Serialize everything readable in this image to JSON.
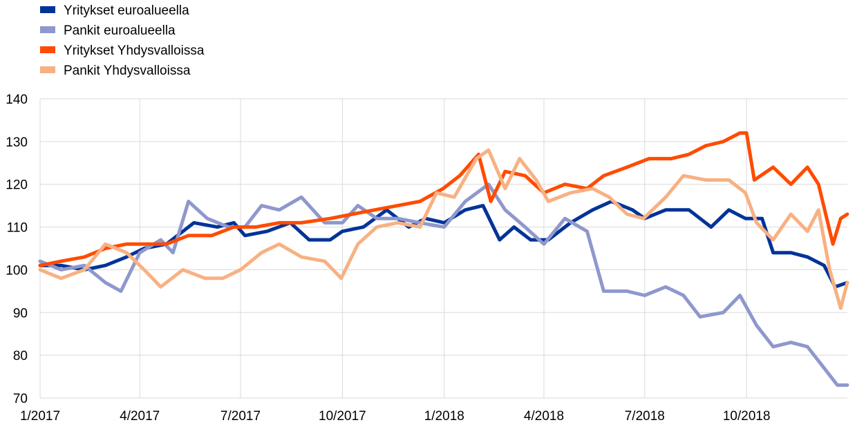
{
  "chart_data": {
    "type": "line",
    "title": "",
    "xlabel": "",
    "ylabel": "",
    "ylim": [
      70,
      140
    ],
    "yticks": [
      70,
      80,
      90,
      100,
      110,
      120,
      130,
      140
    ],
    "x_start": "2017-01-01",
    "x_end": "2018-12-31",
    "xticks": [
      {
        "date": "2017-01-01",
        "label": "1/2017"
      },
      {
        "date": "2017-04-01",
        "label": "4/2017"
      },
      {
        "date": "2017-07-01",
        "label": "7/2017"
      },
      {
        "date": "2017-10-01",
        "label": "10/2017"
      },
      {
        "date": "2018-01-01",
        "label": "1/2018"
      },
      {
        "date": "2018-04-01",
        "label": "4/2018"
      },
      {
        "date": "2018-07-01",
        "label": "7/2018"
      },
      {
        "date": "2018-10-01",
        "label": "10/2018"
      }
    ],
    "grid": true,
    "legend_position": "top-left",
    "series": [
      {
        "name": "Yritykset euroalueella",
        "color": "#003399",
        "points": [
          [
            "2017-01-01",
            101
          ],
          [
            "2017-01-20",
            101
          ],
          [
            "2017-02-10",
            100
          ],
          [
            "2017-03-01",
            101
          ],
          [
            "2017-03-20",
            103
          ],
          [
            "2017-04-05",
            105
          ],
          [
            "2017-04-25",
            106
          ],
          [
            "2017-05-10",
            109
          ],
          [
            "2017-05-20",
            111
          ],
          [
            "2017-06-10",
            110
          ],
          [
            "2017-06-25",
            111
          ],
          [
            "2017-07-05",
            108
          ],
          [
            "2017-07-25",
            109
          ],
          [
            "2017-08-15",
            111
          ],
          [
            "2017-09-01",
            107
          ],
          [
            "2017-09-20",
            107
          ],
          [
            "2017-10-01",
            109
          ],
          [
            "2017-10-20",
            110
          ],
          [
            "2017-11-10",
            114
          ],
          [
            "2017-11-30",
            110
          ],
          [
            "2017-12-15",
            112
          ],
          [
            "2018-01-01",
            111
          ],
          [
            "2018-01-20",
            114
          ],
          [
            "2018-02-05",
            115
          ],
          [
            "2018-02-20",
            107
          ],
          [
            "2018-03-05",
            110
          ],
          [
            "2018-03-20",
            107
          ],
          [
            "2018-04-05",
            107
          ],
          [
            "2018-04-25",
            111
          ],
          [
            "2018-05-15",
            114
          ],
          [
            "2018-06-01",
            116
          ],
          [
            "2018-06-20",
            114
          ],
          [
            "2018-07-01",
            112
          ],
          [
            "2018-07-20",
            114
          ],
          [
            "2018-08-10",
            114
          ],
          [
            "2018-08-30",
            110
          ],
          [
            "2018-09-15",
            114
          ],
          [
            "2018-09-30",
            112
          ],
          [
            "2018-10-15",
            112
          ],
          [
            "2018-10-25",
            104
          ],
          [
            "2018-11-10",
            104
          ],
          [
            "2018-11-25",
            103
          ],
          [
            "2018-12-10",
            101
          ],
          [
            "2018-12-20",
            96
          ],
          [
            "2018-12-31",
            97
          ]
        ]
      },
      {
        "name": "Pankit euroalueella",
        "color": "#8f98cc",
        "points": [
          [
            "2017-01-01",
            102
          ],
          [
            "2017-01-20",
            100
          ],
          [
            "2017-02-10",
            101
          ],
          [
            "2017-03-01",
            97
          ],
          [
            "2017-03-15",
            95
          ],
          [
            "2017-04-01",
            104
          ],
          [
            "2017-04-20",
            107
          ],
          [
            "2017-05-01",
            104
          ],
          [
            "2017-05-15",
            116
          ],
          [
            "2017-06-01",
            112
          ],
          [
            "2017-06-20",
            110
          ],
          [
            "2017-07-05",
            110
          ],
          [
            "2017-07-20",
            115
          ],
          [
            "2017-08-05",
            114
          ],
          [
            "2017-08-25",
            117
          ],
          [
            "2017-09-15",
            111
          ],
          [
            "2017-10-01",
            111
          ],
          [
            "2017-10-15",
            115
          ],
          [
            "2017-11-01",
            112
          ],
          [
            "2017-11-20",
            112
          ],
          [
            "2017-12-10",
            111
          ],
          [
            "2018-01-01",
            110
          ],
          [
            "2018-01-20",
            116
          ],
          [
            "2018-02-10",
            120
          ],
          [
            "2018-02-25",
            114
          ],
          [
            "2018-03-15",
            110
          ],
          [
            "2018-04-01",
            106
          ],
          [
            "2018-04-20",
            112
          ],
          [
            "2018-05-10",
            109
          ],
          [
            "2018-05-25",
            95
          ],
          [
            "2018-06-15",
            95
          ],
          [
            "2018-07-01",
            94
          ],
          [
            "2018-07-20",
            96
          ],
          [
            "2018-08-05",
            94
          ],
          [
            "2018-08-20",
            89
          ],
          [
            "2018-09-10",
            90
          ],
          [
            "2018-09-25",
            94
          ],
          [
            "2018-10-10",
            87
          ],
          [
            "2018-10-25",
            82
          ],
          [
            "2018-11-10",
            83
          ],
          [
            "2018-11-25",
            82
          ],
          [
            "2018-12-10",
            77
          ],
          [
            "2018-12-22",
            73
          ],
          [
            "2018-12-31",
            73
          ]
        ]
      },
      {
        "name": "Yritykset Yhdysvalloissa",
        "color": "#ff4b00",
        "points": [
          [
            "2017-01-01",
            101
          ],
          [
            "2017-01-20",
            102
          ],
          [
            "2017-02-10",
            103
          ],
          [
            "2017-03-01",
            105
          ],
          [
            "2017-03-20",
            106
          ],
          [
            "2017-04-05",
            106
          ],
          [
            "2017-04-25",
            106
          ],
          [
            "2017-05-15",
            108
          ],
          [
            "2017-06-05",
            108
          ],
          [
            "2017-06-25",
            110
          ],
          [
            "2017-07-15",
            110
          ],
          [
            "2017-08-05",
            111
          ],
          [
            "2017-08-25",
            111
          ],
          [
            "2017-09-20",
            112
          ],
          [
            "2017-10-10",
            113
          ],
          [
            "2017-10-30",
            114
          ],
          [
            "2017-11-20",
            115
          ],
          [
            "2017-12-10",
            116
          ],
          [
            "2017-12-31",
            119
          ],
          [
            "2018-01-15",
            122
          ],
          [
            "2018-02-01",
            127
          ],
          [
            "2018-02-12",
            116
          ],
          [
            "2018-02-25",
            123
          ],
          [
            "2018-03-15",
            122
          ],
          [
            "2018-04-01",
            118
          ],
          [
            "2018-04-20",
            120
          ],
          [
            "2018-05-10",
            119
          ],
          [
            "2018-05-25",
            122
          ],
          [
            "2018-06-15",
            124
          ],
          [
            "2018-07-05",
            126
          ],
          [
            "2018-07-25",
            126
          ],
          [
            "2018-08-10",
            127
          ],
          [
            "2018-08-25",
            129
          ],
          [
            "2018-09-10",
            130
          ],
          [
            "2018-09-25",
            132
          ],
          [
            "2018-10-01",
            132
          ],
          [
            "2018-10-08",
            121
          ],
          [
            "2018-10-25",
            124
          ],
          [
            "2018-11-10",
            120
          ],
          [
            "2018-11-25",
            124
          ],
          [
            "2018-12-05",
            120
          ],
          [
            "2018-12-18",
            106
          ],
          [
            "2018-12-25",
            112
          ],
          [
            "2018-12-31",
            113
          ]
        ]
      },
      {
        "name": "Pankit Yhdysvalloissa",
        "color": "#f7b183",
        "points": [
          [
            "2017-01-01",
            100
          ],
          [
            "2017-01-20",
            98
          ],
          [
            "2017-02-10",
            100
          ],
          [
            "2017-03-01",
            106
          ],
          [
            "2017-03-20",
            104
          ],
          [
            "2017-04-05",
            100
          ],
          [
            "2017-04-20",
            96
          ],
          [
            "2017-05-10",
            100
          ],
          [
            "2017-05-30",
            98
          ],
          [
            "2017-06-15",
            98
          ],
          [
            "2017-07-01",
            100
          ],
          [
            "2017-07-20",
            104
          ],
          [
            "2017-08-05",
            106
          ],
          [
            "2017-08-25",
            103
          ],
          [
            "2017-09-15",
            102
          ],
          [
            "2017-09-30",
            98
          ],
          [
            "2017-10-15",
            106
          ],
          [
            "2017-11-01",
            110
          ],
          [
            "2017-11-20",
            111
          ],
          [
            "2017-12-10",
            110
          ],
          [
            "2017-12-25",
            118
          ],
          [
            "2018-01-10",
            117
          ],
          [
            "2018-01-30",
            126
          ],
          [
            "2018-02-10",
            128
          ],
          [
            "2018-02-25",
            119
          ],
          [
            "2018-03-10",
            126
          ],
          [
            "2018-03-25",
            121
          ],
          [
            "2018-04-05",
            116
          ],
          [
            "2018-04-25",
            118
          ],
          [
            "2018-05-15",
            119
          ],
          [
            "2018-05-30",
            117
          ],
          [
            "2018-06-15",
            113
          ],
          [
            "2018-06-30",
            112
          ],
          [
            "2018-07-20",
            117
          ],
          [
            "2018-08-05",
            122
          ],
          [
            "2018-08-25",
            121
          ],
          [
            "2018-09-15",
            121
          ],
          [
            "2018-09-30",
            118
          ],
          [
            "2018-10-10",
            111
          ],
          [
            "2018-10-25",
            107
          ],
          [
            "2018-11-10",
            113
          ],
          [
            "2018-11-25",
            109
          ],
          [
            "2018-12-05",
            114
          ],
          [
            "2018-12-15",
            100
          ],
          [
            "2018-12-25",
            91
          ],
          [
            "2018-12-31",
            97
          ]
        ]
      }
    ]
  }
}
